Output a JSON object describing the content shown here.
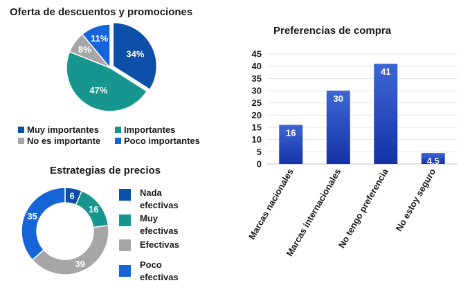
{
  "colors": {
    "dark_blue": "#0b4fa8",
    "teal": "#16968f",
    "gray": "#a6a6a6",
    "bright_blue": "#1565d8",
    "bar_top": "#3f66d4",
    "bar_bottom": "#1432a6"
  },
  "chart_data": [
    {
      "type": "pie",
      "title": "Oferta de descuentos y promociones",
      "slices": [
        {
          "name": "Muy importantes",
          "value": 34,
          "label": "34%",
          "color": "#0b4fa8"
        },
        {
          "name": "Importantes",
          "value": 47,
          "label": "47%",
          "color": "#16968f"
        },
        {
          "name": "No es importante",
          "value": 8,
          "label": "8%",
          "color": "#a6a6a6"
        },
        {
          "name": "Poco importantes",
          "value": 11,
          "label": "11%",
          "color": "#1565d8"
        }
      ],
      "legend_position": "bottom"
    },
    {
      "type": "doughnut",
      "title": "Estrategias de precios",
      "slices": [
        {
          "name": "Nada efectivas",
          "name_lines": [
            "Nada",
            "efectivas"
          ],
          "value": 6,
          "label": "6",
          "color": "#0b4fa8"
        },
        {
          "name": "Muy efectivas",
          "name_lines": [
            "Muy",
            "efectivas"
          ],
          "value": 16,
          "label": "16",
          "color": "#16968f"
        },
        {
          "name": "Efectivas",
          "name_lines": [
            "Efectivas"
          ],
          "value": 39,
          "label": "39",
          "color": "#a6a6a6"
        },
        {
          "name": "Poco efectivas",
          "name_lines": [
            "Poco",
            "efectivas"
          ],
          "value": 35,
          "label": "35",
          "color": "#1565d8"
        }
      ],
      "legend_position": "right"
    },
    {
      "type": "bar",
      "title": "Preferencias de compra",
      "categories": [
        "Marcas nacionales",
        "Marcas internacionales",
        "No tengo preferencia",
        "No estoy seguro"
      ],
      "values": [
        16,
        30,
        41,
        4.5
      ],
      "value_labels": [
        "16",
        "30",
        "41",
        "4,5"
      ],
      "ylim": [
        0,
        45
      ],
      "yticks": [
        "0",
        "5",
        "10",
        "15",
        "20",
        "25",
        "30",
        "35",
        "40",
        "45"
      ],
      "grid": true
    }
  ]
}
